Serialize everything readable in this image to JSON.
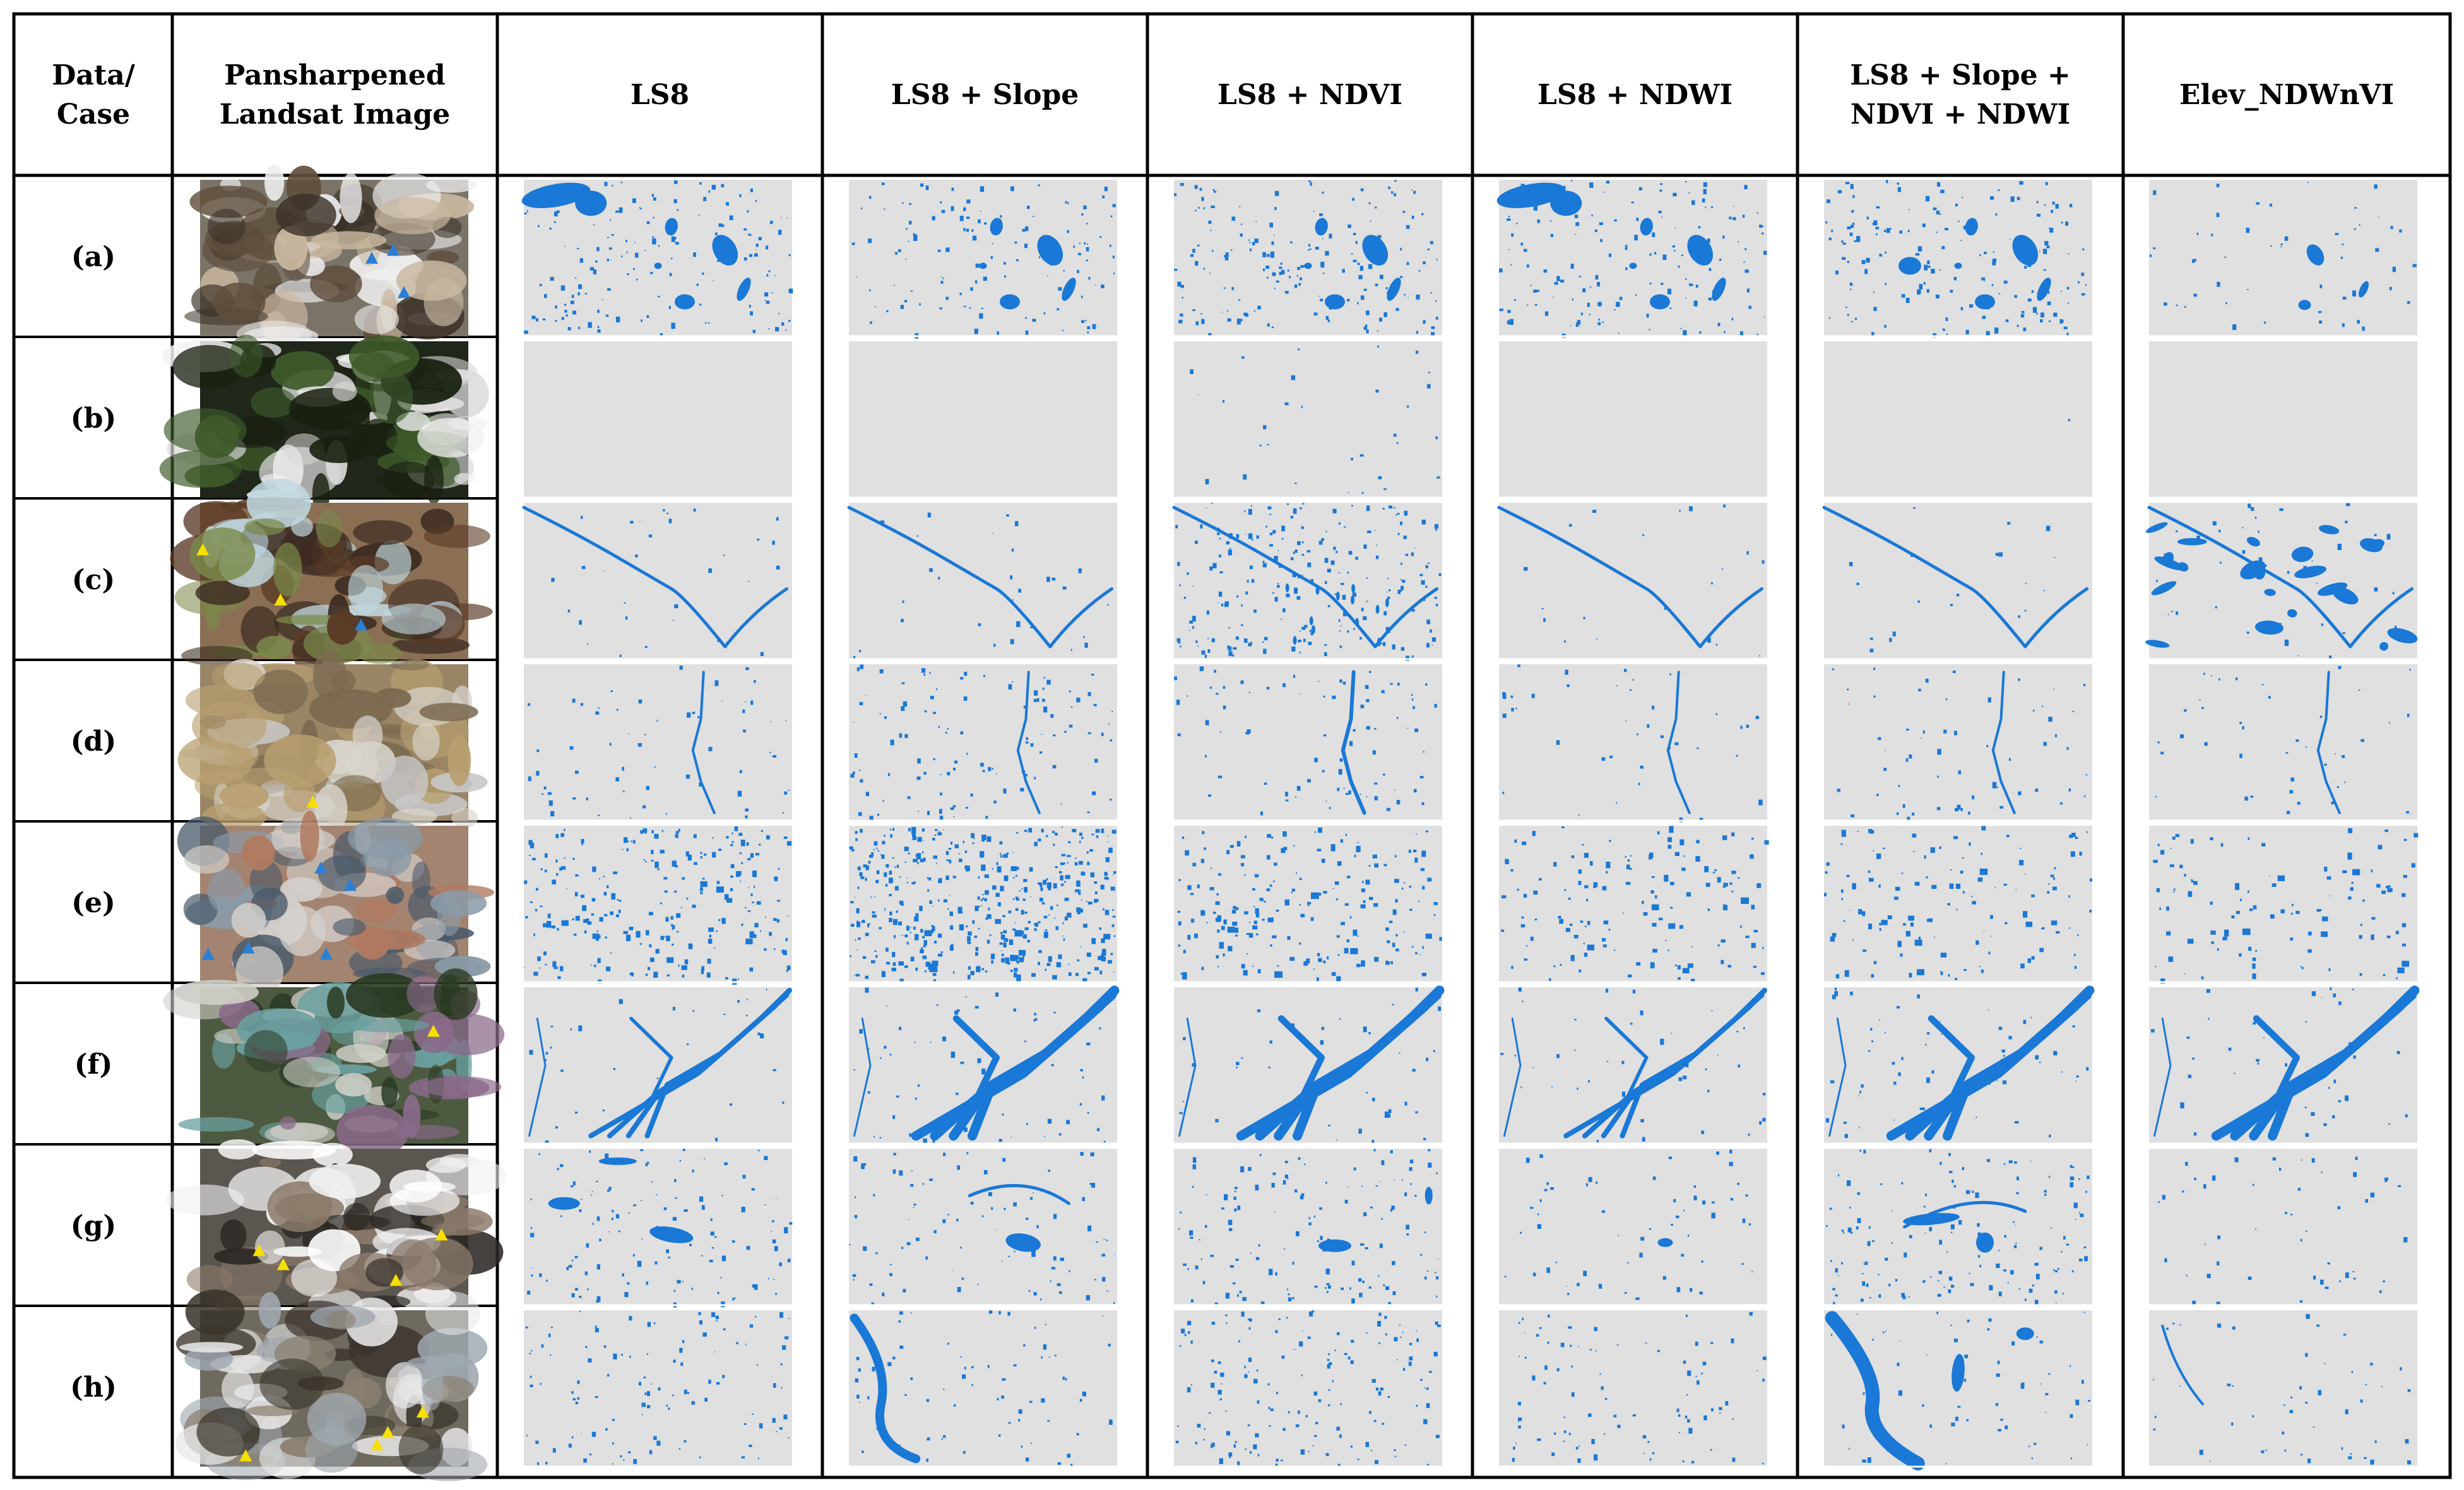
{
  "header": {
    "columns": [
      "Data/\nCase",
      "Pansharpened\nLandsat Image",
      "LS8",
      "LS8 + Slope",
      "LS8 + NDVI",
      "LS8 + NDWI",
      "LS8 + Slope +\nNDVI + NDWI",
      "Elev_NDWnVI"
    ]
  },
  "rows": [
    {
      "label": "(a)",
      "scene": "glacial-lakes"
    },
    {
      "label": "(b)",
      "scene": "clouds"
    },
    {
      "label": "(c)",
      "scene": "river-valley"
    },
    {
      "label": "(d)",
      "scene": "river-plain"
    },
    {
      "label": "(e)",
      "scene": "urban-ponds"
    },
    {
      "label": "(f)",
      "scene": "braided-river"
    },
    {
      "label": "(g)",
      "scene": "glacier"
    },
    {
      "label": "(h)",
      "scene": "glaciers"
    }
  ],
  "colors": {
    "water": "#1a78d6",
    "background": "#e0e0e0",
    "marker_yellow": "#f7e000",
    "marker_blue": "#2a7fd6",
    "grid": "#000000"
  },
  "icons": {
    "marker_yellow": "yellow-triangle-marker-icon",
    "marker_blue": "blue-triangle-marker-icon"
  }
}
